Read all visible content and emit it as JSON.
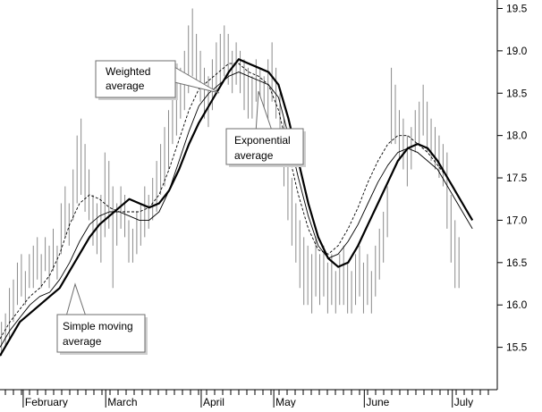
{
  "chart_data": {
    "type": "line",
    "ylim": [
      15.0,
      19.6
    ],
    "xlim": [
      0,
      100
    ],
    "yticks": [
      "15.5",
      "16.0",
      "16.5",
      "17.0",
      "17.5",
      "18.0",
      "18.5",
      "19.0",
      "19.5"
    ],
    "ytick_values": [
      15.5,
      16.0,
      16.5,
      17.0,
      17.5,
      18.0,
      18.5,
      19.0,
      19.5
    ],
    "xticks": [
      "February",
      "March",
      "April",
      "May",
      "June",
      "July"
    ],
    "xtick_values": [
      5.2,
      21.8,
      41.0,
      55.6,
      73.8,
      91.5
    ],
    "grid": false,
    "annotations": {
      "weighted": [
        "Weighted",
        "average"
      ],
      "exponential": [
        "Exponential",
        "average"
      ],
      "simple": [
        "Simple moving",
        "average"
      ]
    },
    "bars": [
      {
        "x": 0.3,
        "high": 15.8,
        "low": 15.4
      },
      {
        "x": 1.1,
        "high": 15.9,
        "low": 15.5
      },
      {
        "x": 1.9,
        "high": 16.2,
        "low": 15.6
      },
      {
        "x": 2.7,
        "high": 16.3,
        "low": 15.8
      },
      {
        "x": 3.5,
        "high": 16.5,
        "low": 16.0
      },
      {
        "x": 4.3,
        "high": 16.6,
        "low": 16.1
      },
      {
        "x": 5.1,
        "high": 16.4,
        "low": 16.0
      },
      {
        "x": 5.9,
        "high": 16.6,
        "low": 16.2
      },
      {
        "x": 6.7,
        "high": 16.7,
        "low": 16.2
      },
      {
        "x": 7.5,
        "high": 16.8,
        "low": 16.3
      },
      {
        "x": 8.3,
        "high": 16.6,
        "low": 16.2
      },
      {
        "x": 9.1,
        "high": 16.8,
        "low": 16.4
      },
      {
        "x": 9.9,
        "high": 16.7,
        "low": 16.2
      },
      {
        "x": 10.7,
        "high": 16.9,
        "low": 16.4
      },
      {
        "x": 11.5,
        "high": 16.7,
        "low": 16.3
      },
      {
        "x": 12.3,
        "high": 17.2,
        "low": 16.6
      },
      {
        "x": 13.1,
        "high": 17.4,
        "low": 16.8
      },
      {
        "x": 13.9,
        "high": 17.2,
        "low": 16.7
      },
      {
        "x": 14.7,
        "high": 17.6,
        "low": 17.0
      },
      {
        "x": 15.5,
        "high": 18.0,
        "low": 17.2
      },
      {
        "x": 16.3,
        "high": 18.2,
        "low": 17.3
      },
      {
        "x": 17.1,
        "high": 17.9,
        "low": 17.1
      },
      {
        "x": 17.9,
        "high": 17.6,
        "low": 17.0
      },
      {
        "x": 18.7,
        "high": 17.3,
        "low": 16.7
      },
      {
        "x": 19.5,
        "high": 17.2,
        "low": 16.6
      },
      {
        "x": 20.3,
        "high": 17.3,
        "low": 16.5
      },
      {
        "x": 21.1,
        "high": 17.8,
        "low": 16.8
      },
      {
        "x": 21.9,
        "high": 17.7,
        "low": 16.9
      },
      {
        "x": 22.7,
        "high": 17.4,
        "low": 16.2
      },
      {
        "x": 23.5,
        "high": 17.2,
        "low": 16.7
      },
      {
        "x": 24.3,
        "high": 17.4,
        "low": 16.9
      },
      {
        "x": 25.1,
        "high": 17.3,
        "low": 16.8
      },
      {
        "x": 25.9,
        "high": 17.0,
        "low": 16.5
      },
      {
        "x": 26.7,
        "high": 16.9,
        "low": 16.5
      },
      {
        "x": 27.5,
        "high": 17.1,
        "low": 16.6
      },
      {
        "x": 28.3,
        "high": 17.2,
        "low": 16.7
      },
      {
        "x": 29.1,
        "high": 17.4,
        "low": 16.8
      },
      {
        "x": 29.9,
        "high": 17.3,
        "low": 16.9
      },
      {
        "x": 30.7,
        "high": 17.5,
        "low": 17.0
      },
      {
        "x": 31.5,
        "high": 17.7,
        "low": 17.1
      },
      {
        "x": 32.3,
        "high": 17.9,
        "low": 17.3
      },
      {
        "x": 33.1,
        "high": 18.1,
        "low": 17.4
      },
      {
        "x": 33.9,
        "high": 18.3,
        "low": 17.6
      },
      {
        "x": 34.7,
        "high": 18.5,
        "low": 17.9
      },
      {
        "x": 35.5,
        "high": 18.6,
        "low": 18.0
      },
      {
        "x": 36.3,
        "high": 18.8,
        "low": 18.2
      },
      {
        "x": 37.1,
        "high": 19.0,
        "low": 18.3
      },
      {
        "x": 37.9,
        "high": 19.3,
        "low": 18.5
      },
      {
        "x": 38.7,
        "high": 19.5,
        "low": 18.7
      },
      {
        "x": 39.5,
        "high": 19.2,
        "low": 18.6
      },
      {
        "x": 40.3,
        "high": 19.0,
        "low": 18.4
      },
      {
        "x": 41.1,
        "high": 18.8,
        "low": 18.2
      },
      {
        "x": 41.9,
        "high": 18.7,
        "low": 18.1
      },
      {
        "x": 42.7,
        "high": 18.9,
        "low": 18.3
      },
      {
        "x": 43.5,
        "high": 19.1,
        "low": 18.5
      },
      {
        "x": 44.3,
        "high": 19.2,
        "low": 18.6
      },
      {
        "x": 45.1,
        "high": 19.3,
        "low": 18.7
      },
      {
        "x": 45.9,
        "high": 19.2,
        "low": 18.6
      },
      {
        "x": 46.7,
        "high": 19.0,
        "low": 18.5
      },
      {
        "x": 47.5,
        "high": 19.1,
        "low": 18.6
      },
      {
        "x": 48.3,
        "high": 19.0,
        "low": 18.5
      },
      {
        "x": 49.1,
        "high": 18.9,
        "low": 18.3
      },
      {
        "x": 49.9,
        "high": 18.8,
        "low": 18.2
      },
      {
        "x": 50.7,
        "high": 18.7,
        "low": 18.2
      },
      {
        "x": 51.5,
        "high": 18.9,
        "low": 18.4
      },
      {
        "x": 52.3,
        "high": 18.8,
        "low": 18.3
      },
      {
        "x": 53.1,
        "high": 18.7,
        "low": 18.1
      },
      {
        "x": 53.9,
        "high": 18.9,
        "low": 18.2
      },
      {
        "x": 54.7,
        "high": 19.1,
        "low": 18.4
      },
      {
        "x": 55.5,
        "high": 18.8,
        "low": 18.2
      },
      {
        "x": 56.3,
        "high": 18.5,
        "low": 17.8
      },
      {
        "x": 57.1,
        "high": 18.2,
        "low": 17.4
      },
      {
        "x": 57.9,
        "high": 17.8,
        "low": 17.0
      },
      {
        "x": 58.7,
        "high": 17.5,
        "low": 16.7
      },
      {
        "x": 59.5,
        "high": 17.2,
        "low": 16.5
      },
      {
        "x": 60.3,
        "high": 17.0,
        "low": 16.2
      },
      {
        "x": 61.1,
        "high": 16.8,
        "low": 16.0
      },
      {
        "x": 61.9,
        "high": 16.7,
        "low": 16.0
      },
      {
        "x": 62.7,
        "high": 16.6,
        "low": 15.9
      },
      {
        "x": 63.5,
        "high": 16.8,
        "low": 16.1
      },
      {
        "x": 64.3,
        "high": 16.6,
        "low": 16.0
      },
      {
        "x": 65.1,
        "high": 16.7,
        "low": 16.1
      },
      {
        "x": 65.9,
        "high": 16.5,
        "low": 15.9
      },
      {
        "x": 66.7,
        "high": 16.6,
        "low": 16.0
      },
      {
        "x": 67.5,
        "high": 16.4,
        "low": 15.9
      },
      {
        "x": 68.3,
        "high": 16.6,
        "low": 16.0
      },
      {
        "x": 69.1,
        "high": 16.7,
        "low": 16.0
      },
      {
        "x": 69.9,
        "high": 16.5,
        "low": 15.9
      },
      {
        "x": 70.7,
        "high": 16.4,
        "low": 15.9
      },
      {
        "x": 71.5,
        "high": 16.6,
        "low": 16.0
      },
      {
        "x": 72.3,
        "high": 16.7,
        "low": 16.1
      },
      {
        "x": 73.1,
        "high": 16.5,
        "low": 15.9
      },
      {
        "x": 73.9,
        "high": 16.6,
        "low": 16.0
      },
      {
        "x": 74.7,
        "high": 16.4,
        "low": 15.9
      },
      {
        "x": 75.5,
        "high": 16.7,
        "low": 16.1
      },
      {
        "x": 76.3,
        "high": 16.9,
        "low": 16.3
      },
      {
        "x": 77.1,
        "high": 17.1,
        "low": 16.5
      },
      {
        "x": 77.9,
        "high": 17.4,
        "low": 16.8
      },
      {
        "x": 78.7,
        "high": 18.8,
        "low": 17.9
      },
      {
        "x": 79.5,
        "high": 18.6,
        "low": 17.9
      },
      {
        "x": 80.3,
        "high": 18.3,
        "low": 17.7
      },
      {
        "x": 81.1,
        "high": 18.2,
        "low": 17.6
      },
      {
        "x": 81.9,
        "high": 18.0,
        "low": 17.4
      },
      {
        "x": 82.7,
        "high": 18.1,
        "low": 17.6
      },
      {
        "x": 83.5,
        "high": 18.3,
        "low": 17.8
      },
      {
        "x": 84.3,
        "high": 18.4,
        "low": 17.9
      },
      {
        "x": 85.1,
        "high": 18.6,
        "low": 18.0
      },
      {
        "x": 85.9,
        "high": 18.4,
        "low": 17.8
      },
      {
        "x": 86.7,
        "high": 18.2,
        "low": 17.7
      },
      {
        "x": 87.5,
        "high": 18.1,
        "low": 17.6
      },
      {
        "x": 88.3,
        "high": 18.0,
        "low": 17.5
      },
      {
        "x": 89.1,
        "high": 17.9,
        "low": 17.4
      },
      {
        "x": 89.9,
        "high": 17.8,
        "low": 16.9
      },
      {
        "x": 90.7,
        "high": 17.3,
        "low": 16.5
      },
      {
        "x": 91.5,
        "high": 17.0,
        "low": 16.2
      },
      {
        "x": 92.3,
        "high": 16.8,
        "low": 16.2
      }
    ],
    "series": [
      {
        "style": "thick",
        "x": [
          0,
          2,
          4,
          6,
          8,
          10,
          12,
          14,
          16,
          18,
          20,
          22,
          24,
          26,
          28,
          30,
          32,
          34,
          36,
          38,
          40,
          42,
          44,
          46,
          48,
          50,
          52,
          54,
          56,
          58,
          60,
          62,
          64,
          66,
          68,
          70,
          72,
          74,
          76,
          78,
          80,
          82,
          84,
          86,
          88,
          90,
          92,
          94,
          95
        ],
        "y": [
          15.4,
          15.6,
          15.8,
          15.9,
          16.0,
          16.1,
          16.2,
          16.4,
          16.6,
          16.8,
          16.95,
          17.05,
          17.15,
          17.25,
          17.2,
          17.15,
          17.2,
          17.35,
          17.6,
          17.9,
          18.15,
          18.35,
          18.55,
          18.75,
          18.9,
          18.85,
          18.8,
          18.75,
          18.6,
          18.2,
          17.7,
          17.2,
          16.8,
          16.55,
          16.45,
          16.5,
          16.7,
          16.95,
          17.2,
          17.45,
          17.7,
          17.85,
          17.9,
          17.85,
          17.7,
          17.5,
          17.3,
          17.1,
          17.0
        ]
      },
      {
        "style": "thin",
        "x": [
          0,
          2,
          4,
          6,
          8,
          10,
          12,
          14,
          16,
          18,
          20,
          22,
          24,
          26,
          28,
          30,
          32,
          34,
          36,
          38,
          40,
          42,
          44,
          46,
          48,
          50,
          52,
          54,
          56,
          58,
          60,
          62,
          64,
          66,
          68,
          70,
          72,
          74,
          76,
          78,
          80,
          82,
          84,
          86,
          88,
          90,
          92,
          94,
          95
        ],
        "y": [
          15.5,
          15.7,
          15.85,
          16.0,
          16.1,
          16.15,
          16.3,
          16.5,
          16.75,
          16.95,
          17.05,
          17.1,
          17.1,
          17.05,
          17.0,
          17.0,
          17.1,
          17.35,
          17.7,
          18.05,
          18.35,
          18.5,
          18.6,
          18.7,
          18.75,
          18.7,
          18.65,
          18.6,
          18.45,
          18.0,
          17.5,
          17.05,
          16.7,
          16.55,
          16.6,
          16.75,
          16.95,
          17.2,
          17.45,
          17.65,
          17.8,
          17.85,
          17.8,
          17.7,
          17.6,
          17.4,
          17.2,
          17.0,
          16.9
        ]
      },
      {
        "style": "dashed",
        "x": [
          0,
          2,
          4,
          6,
          8,
          10,
          12,
          14,
          16,
          18,
          20,
          22,
          24,
          26,
          28,
          30,
          32,
          34,
          36,
          38,
          40,
          42,
          44,
          46,
          48,
          50,
          52,
          54,
          56,
          58,
          60,
          62,
          64,
          66,
          68,
          70,
          72,
          74,
          76,
          78,
          80,
          82,
          84,
          86,
          88,
          90,
          92,
          94,
          95
        ],
        "y": [
          15.6,
          15.8,
          15.95,
          16.1,
          16.2,
          16.35,
          16.6,
          16.95,
          17.2,
          17.3,
          17.25,
          17.15,
          17.1,
          17.1,
          17.1,
          17.15,
          17.3,
          17.6,
          17.95,
          18.3,
          18.55,
          18.65,
          18.75,
          18.85,
          18.85,
          18.75,
          18.7,
          18.6,
          18.3,
          17.8,
          17.3,
          16.9,
          16.65,
          16.6,
          16.7,
          16.9,
          17.15,
          17.45,
          17.7,
          17.9,
          18.0,
          18.0,
          17.9,
          17.8,
          17.65,
          17.5,
          17.3,
          17.1,
          17.0
        ]
      }
    ]
  }
}
